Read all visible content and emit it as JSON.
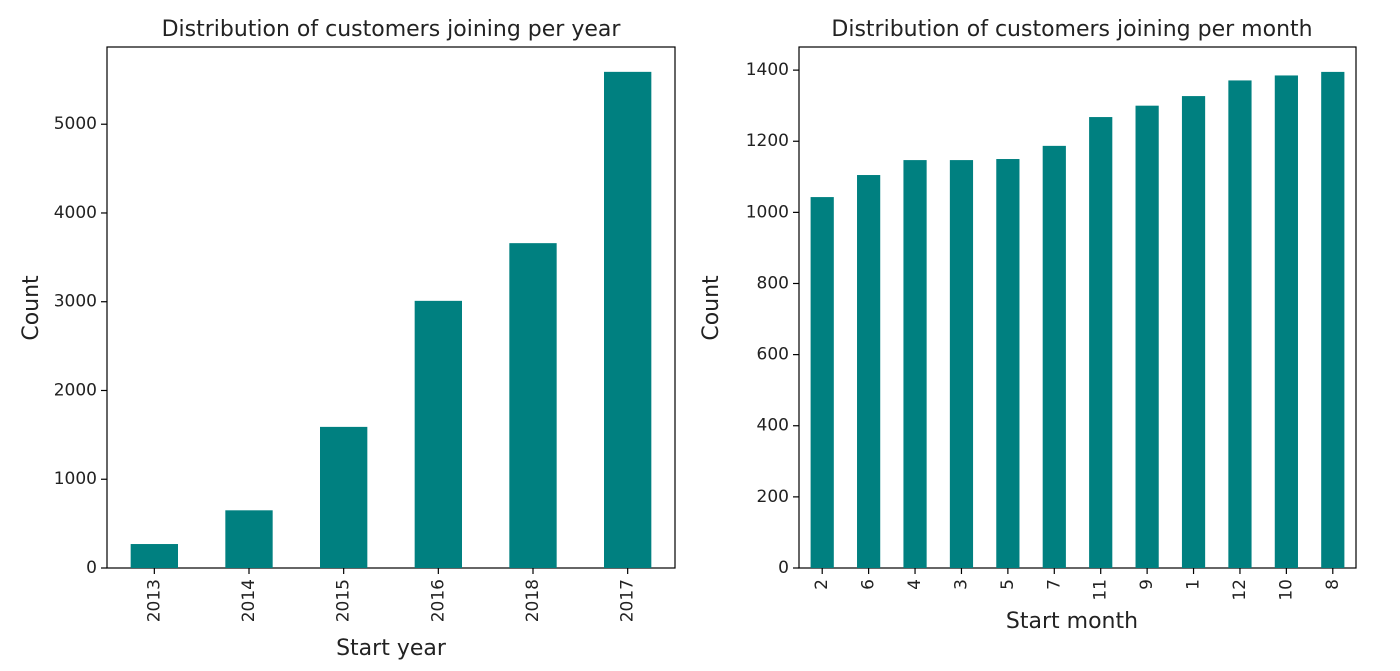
{
  "chart_data": [
    {
      "type": "bar",
      "title": "Distribution of customers joining per year",
      "xlabel": "Start year",
      "ylabel": "Count",
      "categories": [
        "2013",
        "2014",
        "2015",
        "2016",
        "2018",
        "2017"
      ],
      "values": [
        270,
        650,
        1590,
        3010,
        3660,
        5590
      ],
      "ylim": [
        0,
        5870
      ],
      "yticks": [
        0,
        1000,
        2000,
        3000,
        4000,
        5000
      ],
      "grid": false,
      "bar_color": "#008080"
    },
    {
      "type": "bar",
      "title": "Distribution of customers joining per month",
      "xlabel": "Start month",
      "ylabel": "Count",
      "categories": [
        "2",
        "6",
        "4",
        "3",
        "5",
        "7",
        "11",
        "9",
        "1",
        "12",
        "10",
        "8"
      ],
      "values": [
        1043,
        1105,
        1147,
        1147,
        1150,
        1187,
        1268,
        1300,
        1327,
        1371,
        1385,
        1395
      ],
      "ylim": [
        0,
        1465
      ],
      "yticks": [
        0,
        200,
        400,
        600,
        800,
        1000,
        1200,
        1400
      ],
      "grid": false,
      "bar_color": "#008080"
    }
  ]
}
